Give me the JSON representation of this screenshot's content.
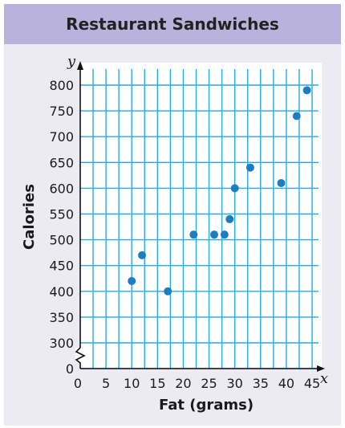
{
  "chart_data": {
    "type": "scatter",
    "title": "Restaurant Sandwiches",
    "xlabel": "Fat (grams)",
    "ylabel": "Calories",
    "x_axis_var": "x",
    "y_axis_var": "y",
    "xlim": [
      0,
      45
    ],
    "ylim": [
      300,
      800
    ],
    "y_axis_break": true,
    "x_ticks": [
      "0",
      "5",
      "10",
      "15",
      "20",
      "25",
      "30",
      "35",
      "40",
      "45"
    ],
    "y_ticks": [
      "0",
      "300",
      "350",
      "400",
      "450",
      "500",
      "550",
      "600",
      "650",
      "700",
      "750",
      "800"
    ],
    "grid": true,
    "point_color": "#1c7ec1",
    "grid_color": "#29a9e0",
    "points": [
      {
        "x": 10,
        "y": 420
      },
      {
        "x": 12,
        "y": 470
      },
      {
        "x": 17,
        "y": 400
      },
      {
        "x": 22,
        "y": 510
      },
      {
        "x": 26,
        "y": 510
      },
      {
        "x": 28,
        "y": 510
      },
      {
        "x": 29,
        "y": 540
      },
      {
        "x": 30,
        "y": 600
      },
      {
        "x": 33,
        "y": 640
      },
      {
        "x": 39,
        "y": 610
      },
      {
        "x": 42,
        "y": 740
      },
      {
        "x": 44,
        "y": 790
      }
    ]
  }
}
